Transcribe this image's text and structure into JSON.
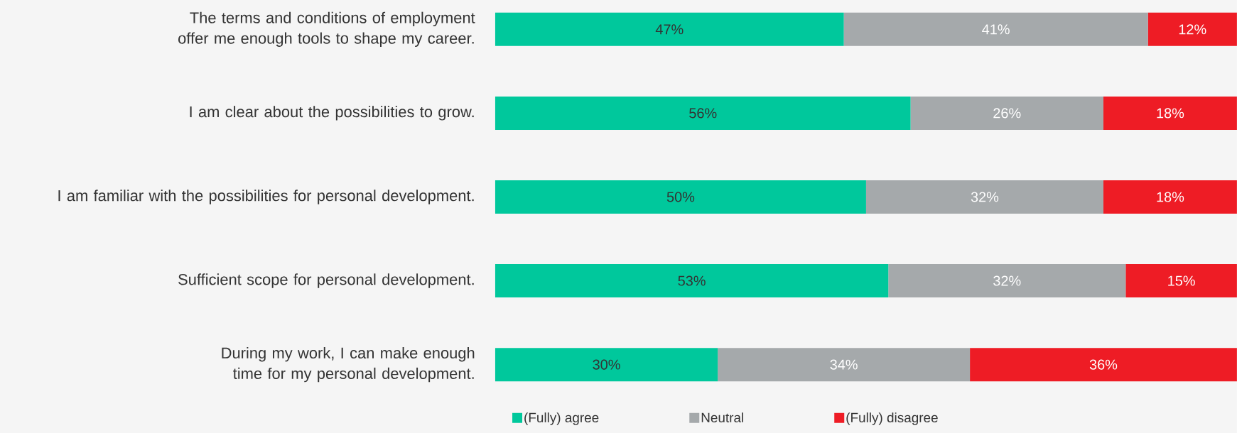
{
  "chart_data": {
    "type": "bar",
    "orientation": "horizontal",
    "stacked": true,
    "categories": [
      "The terms and conditions of employment offer me enough tools to shape my career.",
      "I am clear about the possibilities to grow.",
      "I am familiar with the possibilities for personal development.",
      "Sufficient scope for personal development.",
      "During my work, I can make enough time for my personal development."
    ],
    "series": [
      {
        "name": "(Fully) agree",
        "color": "#00c89c",
        "values": [
          47,
          56,
          50,
          53,
          30
        ],
        "value_labels": [
          "47%",
          "56%",
          "50%",
          "53%",
          "30%"
        ]
      },
      {
        "name": "Neutral",
        "color": "#a5a9ab",
        "values": [
          41,
          26,
          32,
          32,
          34
        ],
        "value_labels": [
          "41%",
          "26%",
          "32%",
          "32%",
          "34%"
        ]
      },
      {
        "name": "(Fully) disagree",
        "color": "#ee1c25",
        "values": [
          12,
          18,
          18,
          15,
          36
        ],
        "value_labels": [
          "12%",
          "18%",
          "18%",
          "15%",
          "36%"
        ]
      }
    ],
    "xlim": [
      0,
      100
    ],
    "tick_labels": "y",
    "legend": "bottom"
  }
}
